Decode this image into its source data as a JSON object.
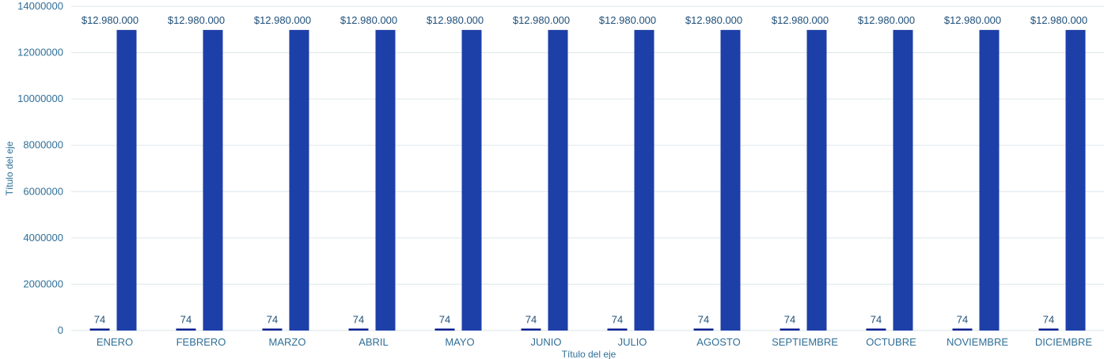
{
  "chart_data": {
    "type": "bar",
    "title": "",
    "xlabel": "Título del eje",
    "ylabel": "Título del eje",
    "ylim": [
      0,
      14000000
    ],
    "y_ticks": [
      0,
      2000000,
      4000000,
      6000000,
      8000000,
      10000000,
      12000000,
      14000000
    ],
    "y_tick_labels": [
      "0",
      "2000000",
      "4000000",
      "6000000",
      "8000000",
      "10000000",
      "12000000",
      "14000000"
    ],
    "categories": [
      "ENERO",
      "FEBRERO",
      "MARZO",
      "ABRIL",
      "MAYO",
      "JUNIO",
      "JULIO",
      "AGOSTO",
      "SEPTIEMBRE",
      "OCTUBRE",
      "NOVIEMBRE",
      "DICIEMBRE"
    ],
    "series": [
      {
        "values": [
          74,
          74,
          74,
          74,
          74,
          74,
          74,
          74,
          74,
          74,
          74,
          74
        ],
        "data_labels": [
          "74",
          "74",
          "74",
          "74",
          "74",
          "74",
          "74",
          "74",
          "74",
          "74",
          "74",
          "74"
        ],
        "color": "#0a1f8f"
      },
      {
        "values": [
          12980000,
          12980000,
          12980000,
          12980000,
          12980000,
          12980000,
          12980000,
          12980000,
          12980000,
          12980000,
          12980000,
          12980000
        ],
        "data_labels": [
          "$12.980.000",
          "$12.980.000",
          "$12.980.000",
          "$12.980.000",
          "$12.980.000",
          "$12.980.000",
          "$12.980.000",
          "$12.980.000",
          "$12.980.000",
          "$12.980.000",
          "$12.980.000",
          "$12.980.000"
        ],
        "color": "#1d3fa8"
      }
    ],
    "grid": true,
    "legend": "none"
  }
}
